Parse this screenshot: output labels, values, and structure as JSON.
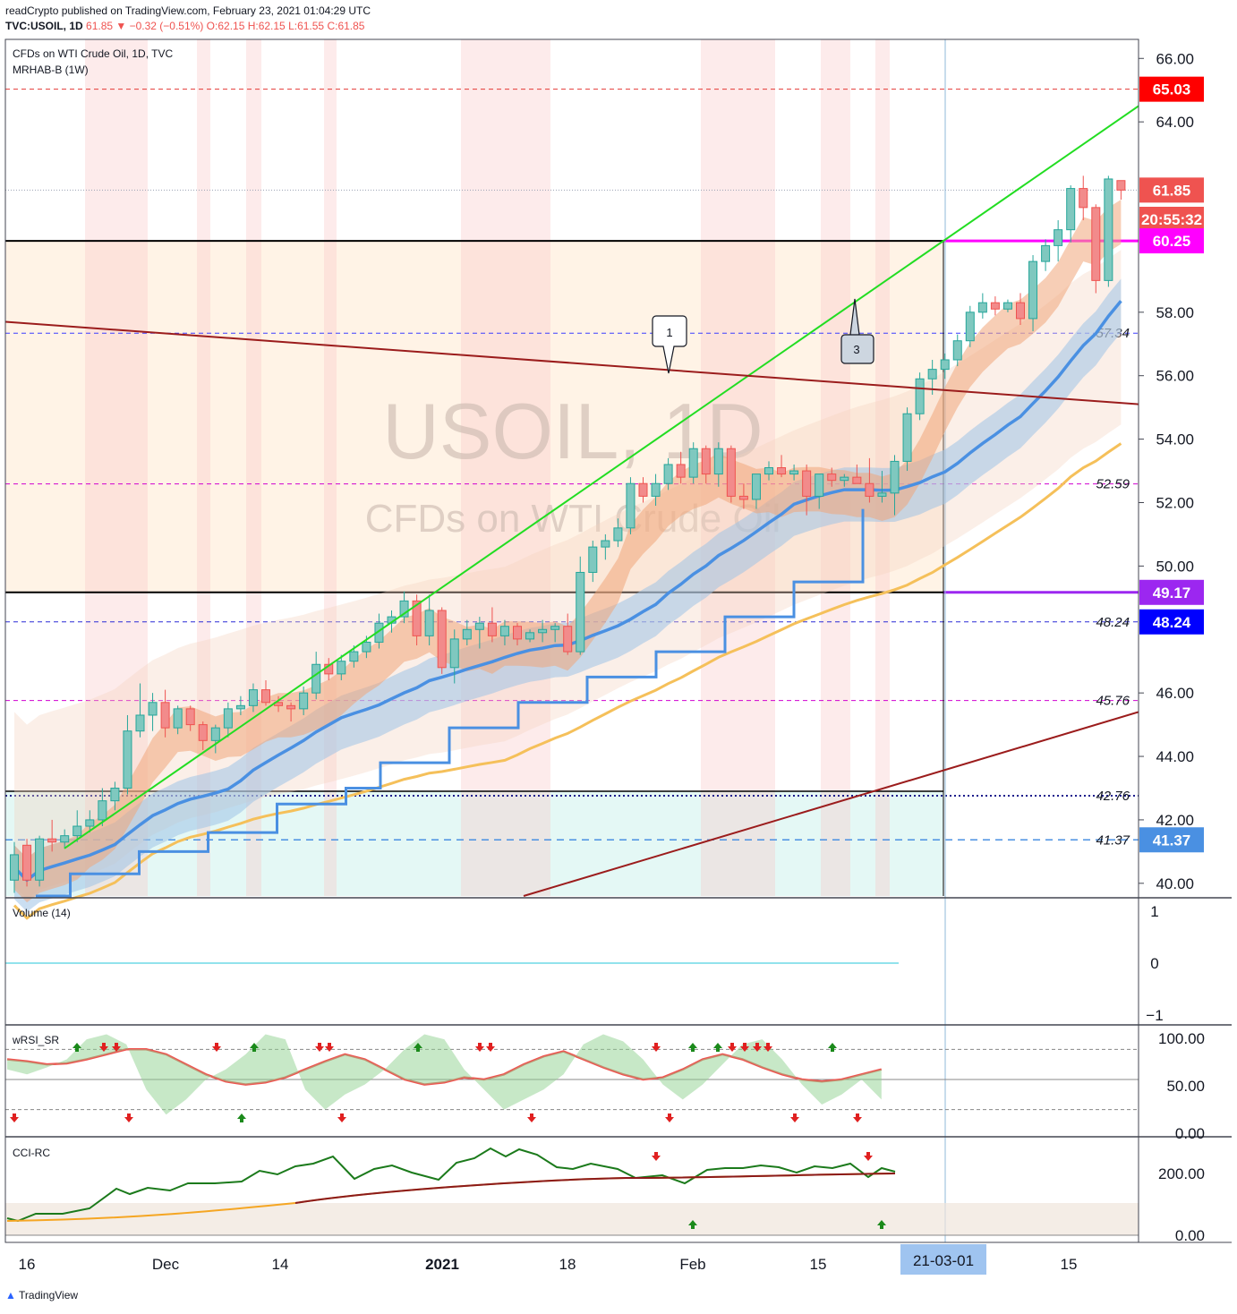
{
  "header": {
    "publisher_line": "readCrypto published on TradingView.com, February 23, 2021 01:04:29 UTC",
    "symbol": "TVC:USOIL, 1D",
    "last": "61.85",
    "change": "▼ −0.32 (−0.51%)",
    "ohlc": "O:62.15 H:62.15 L:61.55 C:61.85",
    "title": "CFDs on WTI Crude Oil, 1D, TVC",
    "study": "MRHAB-B (1W)"
  },
  "watermark": {
    "line1": "USOIL, 1D",
    "line2": "CFDs on WTI Crude Oil"
  },
  "price_axis": {
    "ticks": [
      "66.00",
      "64.00",
      "58.00",
      "56.00",
      "54.00",
      "52.00",
      "50.00",
      "46.00",
      "44.00",
      "42.00",
      "40.00"
    ],
    "tags": [
      {
        "label": "65.03",
        "color": "#ff0000"
      },
      {
        "label": "61.85",
        "color": "#ef5350"
      },
      {
        "label": "20:55:32",
        "color": "#ef5350"
      },
      {
        "label": "60.25",
        "color": "#ff00ff"
      },
      {
        "label": "49.17",
        "color": "#9c27f0"
      },
      {
        "label": "48.24",
        "color": "#0000ff"
      },
      {
        "label": "41.37",
        "color": "#4a90e2"
      }
    ]
  },
  "level_labels": [
    "57.34",
    "52.59",
    "48.24",
    "45.76",
    "42.76",
    "41.37"
  ],
  "callouts": [
    "1",
    "3"
  ],
  "indicators": {
    "volume": {
      "label": "Volume (14)",
      "ticks": [
        "1",
        "0",
        "−1"
      ]
    },
    "wrsi": {
      "label": "wRSI_SR",
      "ticks": [
        "100.00",
        "50.00",
        "0.00"
      ]
    },
    "cci": {
      "label": "CCI-RC",
      "ticks": [
        "200.00",
        "0.00"
      ]
    }
  },
  "time_axis": {
    "labels": [
      "16",
      "Dec",
      "14",
      "2021",
      "18",
      "Feb",
      "15",
      "15"
    ],
    "cursor_label": "21-03-01"
  },
  "footer": {
    "brand": "TradingView"
  },
  "chart_data": {
    "type": "candlestick",
    "symbol": "USOIL",
    "interval": "1D",
    "ylim": [
      39.6,
      66.6
    ],
    "horizontal_levels": [
      65.03,
      60.25,
      57.34,
      52.59,
      49.17,
      48.24,
      45.76,
      42.76,
      41.37
    ],
    "last_price": 61.85,
    "candles": [
      {
        "o": 40.1,
        "h": 41.3,
        "l": 39.7,
        "c": 40.9
      },
      {
        "o": 41.2,
        "h": 41.4,
        "l": 39.9,
        "c": 40.1
      },
      {
        "o": 40.1,
        "h": 41.5,
        "l": 39.9,
        "c": 41.4
      },
      {
        "o": 41.4,
        "h": 42.0,
        "l": 41.0,
        "c": 41.3
      },
      {
        "o": 41.3,
        "h": 41.7,
        "l": 41.1,
        "c": 41.5
      },
      {
        "o": 41.5,
        "h": 42.3,
        "l": 41.3,
        "c": 41.8
      },
      {
        "o": 41.8,
        "h": 42.3,
        "l": 41.6,
        "c": 42.0
      },
      {
        "o": 42.0,
        "h": 43.0,
        "l": 41.8,
        "c": 42.6
      },
      {
        "o": 42.6,
        "h": 43.2,
        "l": 42.3,
        "c": 43.0
      },
      {
        "o": 43.0,
        "h": 45.3,
        "l": 42.8,
        "c": 44.8
      },
      {
        "o": 44.8,
        "h": 46.3,
        "l": 44.6,
        "c": 45.3
      },
      {
        "o": 45.3,
        "h": 46.0,
        "l": 44.8,
        "c": 45.7
      },
      {
        "o": 45.7,
        "h": 46.1,
        "l": 44.6,
        "c": 44.9
      },
      {
        "o": 44.9,
        "h": 45.6,
        "l": 44.7,
        "c": 45.5
      },
      {
        "o": 45.5,
        "h": 45.6,
        "l": 44.8,
        "c": 45.0
      },
      {
        "o": 45.0,
        "h": 45.1,
        "l": 44.2,
        "c": 44.5
      },
      {
        "o": 44.5,
        "h": 45.0,
        "l": 44.1,
        "c": 44.9
      },
      {
        "o": 44.9,
        "h": 45.7,
        "l": 44.6,
        "c": 45.5
      },
      {
        "o": 45.5,
        "h": 45.9,
        "l": 45.3,
        "c": 45.6
      },
      {
        "o": 45.6,
        "h": 46.3,
        "l": 45.4,
        "c": 46.1
      },
      {
        "o": 46.1,
        "h": 46.4,
        "l": 45.6,
        "c": 45.7
      },
      {
        "o": 45.7,
        "h": 45.9,
        "l": 45.4,
        "c": 45.6
      },
      {
        "o": 45.6,
        "h": 45.7,
        "l": 45.1,
        "c": 45.5
      },
      {
        "o": 45.5,
        "h": 46.2,
        "l": 45.3,
        "c": 46.0
      },
      {
        "o": 46.0,
        "h": 47.3,
        "l": 45.8,
        "c": 46.9
      },
      {
        "o": 46.9,
        "h": 47.1,
        "l": 46.4,
        "c": 46.6
      },
      {
        "o": 46.6,
        "h": 47.2,
        "l": 46.4,
        "c": 47.0
      },
      {
        "o": 47.0,
        "h": 47.5,
        "l": 46.8,
        "c": 47.3
      },
      {
        "o": 47.3,
        "h": 47.8,
        "l": 47.1,
        "c": 47.6
      },
      {
        "o": 47.6,
        "h": 48.5,
        "l": 47.4,
        "c": 48.2
      },
      {
        "o": 48.2,
        "h": 48.6,
        "l": 47.9,
        "c": 48.4
      },
      {
        "o": 48.4,
        "h": 49.2,
        "l": 48.2,
        "c": 48.9
      },
      {
        "o": 48.9,
        "h": 49.1,
        "l": 47.5,
        "c": 47.8
      },
      {
        "o": 47.8,
        "h": 49.1,
        "l": 47.5,
        "c": 48.6
      },
      {
        "o": 48.6,
        "h": 48.7,
        "l": 46.6,
        "c": 46.8
      },
      {
        "o": 46.8,
        "h": 48.0,
        "l": 46.3,
        "c": 47.7
      },
      {
        "o": 47.7,
        "h": 48.3,
        "l": 47.5,
        "c": 48.0
      },
      {
        "o": 48.0,
        "h": 48.4,
        "l": 47.4,
        "c": 48.2
      },
      {
        "o": 48.2,
        "h": 48.7,
        "l": 47.6,
        "c": 47.8
      },
      {
        "o": 47.8,
        "h": 48.3,
        "l": 47.5,
        "c": 48.1
      },
      {
        "o": 48.1,
        "h": 48.2,
        "l": 47.5,
        "c": 47.7
      },
      {
        "o": 47.7,
        "h": 48.0,
        "l": 47.6,
        "c": 47.9
      },
      {
        "o": 47.9,
        "h": 48.3,
        "l": 47.6,
        "c": 48.0
      },
      {
        "o": 48.0,
        "h": 48.2,
        "l": 47.6,
        "c": 48.1
      },
      {
        "o": 48.1,
        "h": 48.5,
        "l": 47.2,
        "c": 47.3
      },
      {
        "o": 47.3,
        "h": 50.3,
        "l": 47.2,
        "c": 49.8
      },
      {
        "o": 49.8,
        "h": 50.8,
        "l": 49.5,
        "c": 50.6
      },
      {
        "o": 50.6,
        "h": 51.0,
        "l": 50.2,
        "c": 50.8
      },
      {
        "o": 50.8,
        "h": 51.5,
        "l": 50.6,
        "c": 51.2
      },
      {
        "o": 51.2,
        "h": 52.8,
        "l": 51.0,
        "c": 52.6
      },
      {
        "o": 52.6,
        "h": 52.8,
        "l": 52.0,
        "c": 52.2
      },
      {
        "o": 52.2,
        "h": 52.9,
        "l": 51.9,
        "c": 52.6
      },
      {
        "o": 52.6,
        "h": 53.4,
        "l": 52.4,
        "c": 53.2
      },
      {
        "o": 53.2,
        "h": 53.6,
        "l": 52.6,
        "c": 52.8
      },
      {
        "o": 52.8,
        "h": 53.9,
        "l": 52.6,
        "c": 53.7
      },
      {
        "o": 53.7,
        "h": 53.8,
        "l": 52.6,
        "c": 52.9
      },
      {
        "o": 52.9,
        "h": 53.9,
        "l": 52.5,
        "c": 53.7
      },
      {
        "o": 53.7,
        "h": 53.8,
        "l": 52.0,
        "c": 52.2
      },
      {
        "o": 52.2,
        "h": 52.6,
        "l": 51.8,
        "c": 52.1
      },
      {
        "o": 52.1,
        "h": 52.9,
        "l": 51.8,
        "c": 52.9
      },
      {
        "o": 52.9,
        "h": 53.3,
        "l": 52.7,
        "c": 53.1
      },
      {
        "o": 53.1,
        "h": 53.5,
        "l": 52.8,
        "c": 52.9
      },
      {
        "o": 52.9,
        "h": 53.2,
        "l": 52.7,
        "c": 53.0
      },
      {
        "o": 53.0,
        "h": 53.2,
        "l": 51.6,
        "c": 52.2
      },
      {
        "o": 52.2,
        "h": 52.8,
        "l": 51.8,
        "c": 52.9
      },
      {
        "o": 52.9,
        "h": 53.1,
        "l": 52.5,
        "c": 52.7
      },
      {
        "o": 52.7,
        "h": 52.9,
        "l": 52.5,
        "c": 52.8
      },
      {
        "o": 52.8,
        "h": 53.2,
        "l": 52.6,
        "c": 52.6
      },
      {
        "o": 52.6,
        "h": 53.4,
        "l": 52.0,
        "c": 52.2
      },
      {
        "o": 52.2,
        "h": 53.0,
        "l": 52.0,
        "c": 52.3
      },
      {
        "o": 52.3,
        "h": 53.5,
        "l": 51.6,
        "c": 53.3
      },
      {
        "o": 53.3,
        "h": 55.0,
        "l": 53.0,
        "c": 54.8
      },
      {
        "o": 54.8,
        "h": 56.1,
        "l": 54.6,
        "c": 55.9
      },
      {
        "o": 55.9,
        "h": 56.5,
        "l": 55.4,
        "c": 56.2
      },
      {
        "o": 56.2,
        "h": 56.7,
        "l": 55.9,
        "c": 56.5
      },
      {
        "o": 56.5,
        "h": 57.3,
        "l": 56.3,
        "c": 57.1
      },
      {
        "o": 57.1,
        "h": 58.2,
        "l": 56.9,
        "c": 58.0
      },
      {
        "o": 58.0,
        "h": 58.6,
        "l": 57.8,
        "c": 58.3
      },
      {
        "o": 58.3,
        "h": 58.5,
        "l": 57.9,
        "c": 58.1
      },
      {
        "o": 58.1,
        "h": 58.4,
        "l": 58.0,
        "c": 58.3
      },
      {
        "o": 58.3,
        "h": 58.6,
        "l": 57.6,
        "c": 57.8
      },
      {
        "o": 57.8,
        "h": 59.8,
        "l": 57.4,
        "c": 59.6
      },
      {
        "o": 59.6,
        "h": 60.3,
        "l": 59.3,
        "c": 60.1
      },
      {
        "o": 60.1,
        "h": 60.9,
        "l": 59.6,
        "c": 60.6
      },
      {
        "o": 60.6,
        "h": 62.0,
        "l": 60.2,
        "c": 61.9
      },
      {
        "o": 61.9,
        "h": 62.3,
        "l": 60.9,
        "c": 61.3
      },
      {
        "o": 61.3,
        "h": 61.4,
        "l": 58.6,
        "c": 59.0
      },
      {
        "o": 59.0,
        "h": 62.3,
        "l": 58.8,
        "c": 62.2
      },
      {
        "o": 62.15,
        "h": 62.15,
        "l": 61.55,
        "c": 61.85
      }
    ]
  }
}
